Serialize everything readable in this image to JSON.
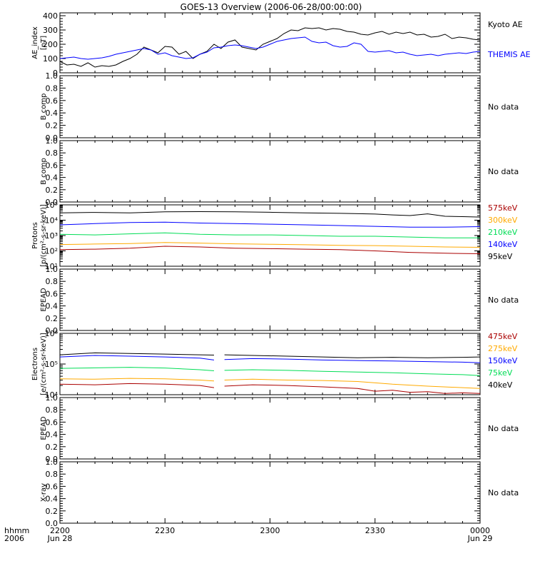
{
  "title": "GOES-13 Overview (2006-06-28/00:00:00)",
  "time_axis": {
    "row_label_1": "hhmm",
    "row_label_2": "2006",
    "ticks": [
      {
        "t": 0,
        "hhmm": "2200",
        "date": "Jun 28"
      },
      {
        "t": 30,
        "hhmm": "2230",
        "date": ""
      },
      {
        "t": 60,
        "hhmm": "2300",
        "date": ""
      },
      {
        "t": 90,
        "hhmm": "2330",
        "date": ""
      },
      {
        "t": 120,
        "hhmm": "0000",
        "date": "Jun 29"
      }
    ]
  },
  "colors": {
    "black": "#000000",
    "blue": "#0000ff",
    "green": "#00dd55",
    "orange": "#ffaa00",
    "darkred": "#aa0000"
  },
  "no_data_text": "No data",
  "chart_data": [
    {
      "type": "line",
      "ylabel_lines": [
        "AE_index",
        "[nT]"
      ],
      "scale": "linear",
      "ylim": [
        0,
        420
      ],
      "ticks": [
        0,
        100,
        200,
        300,
        400
      ],
      "tick_labels": [
        "0",
        "100",
        "200",
        "300",
        "400"
      ],
      "legend": [
        {
          "label": "Kyoto AE",
          "color": "#000000"
        },
        {
          "label": "THEMIS AE",
          "color": "#0000ff"
        }
      ],
      "series": [
        {
          "name": "Kyoto AE",
          "color": "#000000",
          "x": [
            0,
            2,
            4,
            6,
            8,
            10,
            12,
            14,
            16,
            18,
            20,
            22,
            24,
            26,
            28,
            30,
            32,
            34,
            36,
            38,
            40,
            42,
            44,
            46,
            48,
            50,
            52,
            54,
            56,
            58,
            60,
            62,
            64,
            66,
            68,
            70,
            72,
            74,
            76,
            78,
            80,
            82,
            84,
            86,
            88,
            90,
            92,
            94,
            96,
            98,
            100,
            102,
            104,
            106,
            108,
            110,
            112,
            114,
            116,
            118,
            120
          ],
          "y": [
            80,
            55,
            60,
            45,
            70,
            40,
            50,
            45,
            55,
            80,
            100,
            130,
            180,
            160,
            140,
            185,
            180,
            130,
            150,
            100,
            130,
            150,
            200,
            170,
            215,
            230,
            180,
            170,
            160,
            200,
            220,
            240,
            275,
            300,
            295,
            315,
            310,
            315,
            300,
            310,
            305,
            290,
            285,
            270,
            265,
            280,
            290,
            270,
            285,
            275,
            285,
            265,
            270,
            250,
            255,
            270,
            240,
            250,
            245,
            235,
            230
          ]
        },
        {
          "name": "THEMIS AE",
          "color": "#0000ff",
          "x": [
            0,
            2,
            4,
            6,
            8,
            10,
            12,
            14,
            16,
            18,
            20,
            22,
            24,
            26,
            28,
            30,
            32,
            34,
            36,
            38,
            40,
            42,
            44,
            46,
            48,
            50,
            52,
            54,
            56,
            58,
            60,
            62,
            64,
            66,
            68,
            70,
            72,
            74,
            76,
            78,
            80,
            82,
            84,
            86,
            88,
            90,
            92,
            94,
            96,
            98,
            100,
            102,
            104,
            106,
            108,
            110,
            112,
            114,
            116,
            118,
            120
          ],
          "y": [
            100,
            105,
            110,
            100,
            95,
            100,
            105,
            115,
            130,
            140,
            150,
            160,
            170,
            160,
            130,
            140,
            120,
            110,
            100,
            105,
            130,
            145,
            175,
            180,
            190,
            195,
            190,
            180,
            170,
            180,
            200,
            220,
            230,
            240,
            245,
            250,
            220,
            210,
            215,
            190,
            180,
            185,
            210,
            200,
            150,
            145,
            150,
            155,
            140,
            145,
            130,
            120,
            125,
            130,
            120,
            130,
            135,
            140,
            135,
            145,
            150
          ]
        }
      ]
    },
    {
      "type": "line",
      "ylabel_lines": [
        "B comp"
      ],
      "scale": "linear",
      "ylim": [
        0,
        1
      ],
      "ticks": [
        0,
        0.2,
        0.4,
        0.6,
        0.8,
        1.0
      ],
      "tick_labels": [
        "0.0",
        "0.2",
        "0.4",
        "0.6",
        "0.8",
        "1.0"
      ],
      "no_data": true,
      "series": []
    },
    {
      "type": "line",
      "ylabel_lines": [
        "B comp"
      ],
      "scale": "linear",
      "ylim": [
        0,
        1
      ],
      "ticks": [
        0,
        0.2,
        0.4,
        0.6,
        0.8,
        1.0
      ],
      "tick_labels": [
        "0.0",
        "0.2",
        "0.4",
        "0.6",
        "0.8",
        "1.0"
      ],
      "no_data": true,
      "series": []
    },
    {
      "type": "line",
      "ylabel_lines": [
        "Protons",
        "[p/(cm²-s-sr-keV)]"
      ],
      "scale": "log",
      "ylim": [
        10,
        100000
      ],
      "ticks": [
        10,
        100,
        1000,
        10000,
        100000
      ],
      "tick_labels": [
        "10¹",
        "10²",
        "10³",
        "10⁴",
        "10⁵"
      ],
      "legend": [
        {
          "label": "575keV",
          "color": "#aa0000"
        },
        {
          "label": "300keV",
          "color": "#ffaa00"
        },
        {
          "label": "210keV",
          "color": "#00dd55"
        },
        {
          "label": "140keV",
          "color": "#0000ff"
        },
        {
          "label": "95keV",
          "color": "#000000"
        }
      ],
      "series": [
        {
          "name": "95keV",
          "color": "#000000",
          "x": [
            0,
            10,
            20,
            30,
            40,
            50,
            60,
            70,
            80,
            90,
            95,
            100,
            105,
            110,
            115,
            120
          ],
          "y": [
            30000,
            32000,
            30000,
            35000,
            36000,
            35000,
            33000,
            30000,
            28000,
            25000,
            22000,
            20000,
            26000,
            18000,
            17000,
            16000
          ]
        },
        {
          "name": "140keV",
          "color": "#0000ff",
          "x": [
            0,
            10,
            20,
            30,
            40,
            50,
            60,
            70,
            80,
            90,
            100,
            110,
            120
          ],
          "y": [
            5000,
            6000,
            7000,
            7500,
            6500,
            6000,
            5500,
            5000,
            4500,
            4000,
            3500,
            3500,
            3800
          ]
        },
        {
          "name": "210keV",
          "color": "#00dd55",
          "x": [
            0,
            10,
            20,
            30,
            40,
            50,
            60,
            70,
            80,
            90,
            100,
            110,
            120
          ],
          "y": [
            1200,
            1100,
            1300,
            1500,
            1200,
            1100,
            1100,
            1000,
            900,
            900,
            800,
            700,
            700
          ]
        },
        {
          "name": "300keV",
          "color": "#ffaa00",
          "x": [
            0,
            10,
            20,
            30,
            40,
            50,
            60,
            70,
            80,
            90,
            100,
            110,
            120
          ],
          "y": [
            260,
            280,
            300,
            350,
            320,
            290,
            270,
            250,
            230,
            220,
            200,
            180,
            170
          ]
        },
        {
          "name": "575keV",
          "color": "#aa0000",
          "x": [
            0,
            10,
            20,
            30,
            40,
            50,
            60,
            70,
            80,
            90,
            100,
            110,
            120
          ],
          "y": [
            120,
            130,
            150,
            200,
            180,
            150,
            140,
            130,
            120,
            100,
            80,
            70,
            65
          ]
        }
      ]
    },
    {
      "type": "line",
      "ylabel_lines": [
        "EPEAD"
      ],
      "scale": "linear",
      "ylim": [
        0,
        1
      ],
      "ticks": [
        0,
        0.2,
        0.4,
        0.6,
        0.8,
        1.0
      ],
      "tick_labels": [
        "0.0",
        "0.2",
        "0.4",
        "0.6",
        "0.8",
        "1.0"
      ],
      "no_data": true,
      "series": []
    },
    {
      "type": "line",
      "ylabel_lines": [
        "Electrons",
        "[e/(cm²-s-sr-keV)]"
      ],
      "scale": "log",
      "ylim": [
        10000,
        1000000
      ],
      "ticks": [
        10000,
        100000,
        1000000
      ],
      "tick_labels": [
        "10⁴",
        "10⁵",
        "10⁶"
      ],
      "legend": [
        {
          "label": "475keV",
          "color": "#aa0000"
        },
        {
          "label": "275keV",
          "color": "#ffaa00"
        },
        {
          "label": "150keV",
          "color": "#0000ff"
        },
        {
          "label": "75keV",
          "color": "#00dd55"
        },
        {
          "label": "40keV",
          "color": "#000000"
        }
      ],
      "gap": [
        44.5,
        46.5
      ],
      "series": [
        {
          "name": "40keV",
          "color": "#000000",
          "x": [
            0,
            10,
            20,
            30,
            40,
            44,
            47,
            55,
            65,
            75,
            85,
            95,
            105,
            115,
            120
          ],
          "y": [
            200000,
            230000,
            220000,
            210000,
            200000,
            195000,
            200000,
            190000,
            180000,
            170000,
            160000,
            165000,
            160000,
            165000,
            170000
          ]
        },
        {
          "name": "150keV",
          "color": "#0000ff",
          "x": [
            0,
            10,
            20,
            30,
            40,
            44,
            47,
            55,
            65,
            75,
            85,
            95,
            105,
            115,
            120
          ],
          "y": [
            170000,
            190000,
            180000,
            170000,
            155000,
            135000,
            140000,
            150000,
            145000,
            135000,
            130000,
            125000,
            120000,
            115000,
            110000
          ]
        },
        {
          "name": "75keV",
          "color": "#00dd55",
          "x": [
            0,
            10,
            20,
            30,
            40,
            44,
            47,
            55,
            65,
            75,
            85,
            95,
            105,
            115,
            120
          ],
          "y": [
            72000,
            75000,
            78000,
            74000,
            65000,
            60000,
            62000,
            65000,
            62000,
            58000,
            55000,
            52000,
            48000,
            45000,
            42000
          ]
        },
        {
          "name": "275keV",
          "color": "#ffaa00",
          "x": [
            0,
            10,
            20,
            30,
            40,
            44,
            47,
            55,
            65,
            75,
            85,
            95,
            105,
            115,
            120
          ],
          "y": [
            33000,
            32000,
            34000,
            33000,
            30000,
            28000,
            30000,
            32000,
            30000,
            29000,
            27000,
            22000,
            19000,
            17000,
            16000
          ]
        },
        {
          "name": "475keV",
          "color": "#aa0000",
          "x": [
            0,
            10,
            20,
            30,
            40,
            44,
            47,
            55,
            65,
            75,
            85,
            90,
            95,
            100,
            105,
            110,
            115,
            120
          ],
          "y": [
            22000,
            21000,
            23000,
            22000,
            20000,
            17000,
            19000,
            21000,
            20000,
            18000,
            16000,
            13000,
            14000,
            12000,
            12500,
            11000,
            11500,
            11000
          ]
        }
      ]
    },
    {
      "type": "line",
      "ylabel_lines": [
        "EPEAD"
      ],
      "scale": "linear",
      "ylim": [
        0,
        1
      ],
      "ticks": [
        0,
        0.2,
        0.4,
        0.6,
        0.8,
        1.0
      ],
      "tick_labels": [
        "0.0",
        "0.2",
        "0.4",
        "0.6",
        "0.8",
        "1.0"
      ],
      "no_data": true,
      "series": []
    },
    {
      "type": "line",
      "ylabel_lines": [
        "X-ray"
      ],
      "scale": "linear",
      "ylim": [
        0,
        1
      ],
      "ticks": [
        0,
        0.2,
        0.4,
        0.6,
        0.8,
        1.0
      ],
      "tick_labels": [
        "0.0",
        "0.2",
        "0.4",
        "0.6",
        "0.8",
        "1.0"
      ],
      "no_data": true,
      "series": []
    }
  ]
}
